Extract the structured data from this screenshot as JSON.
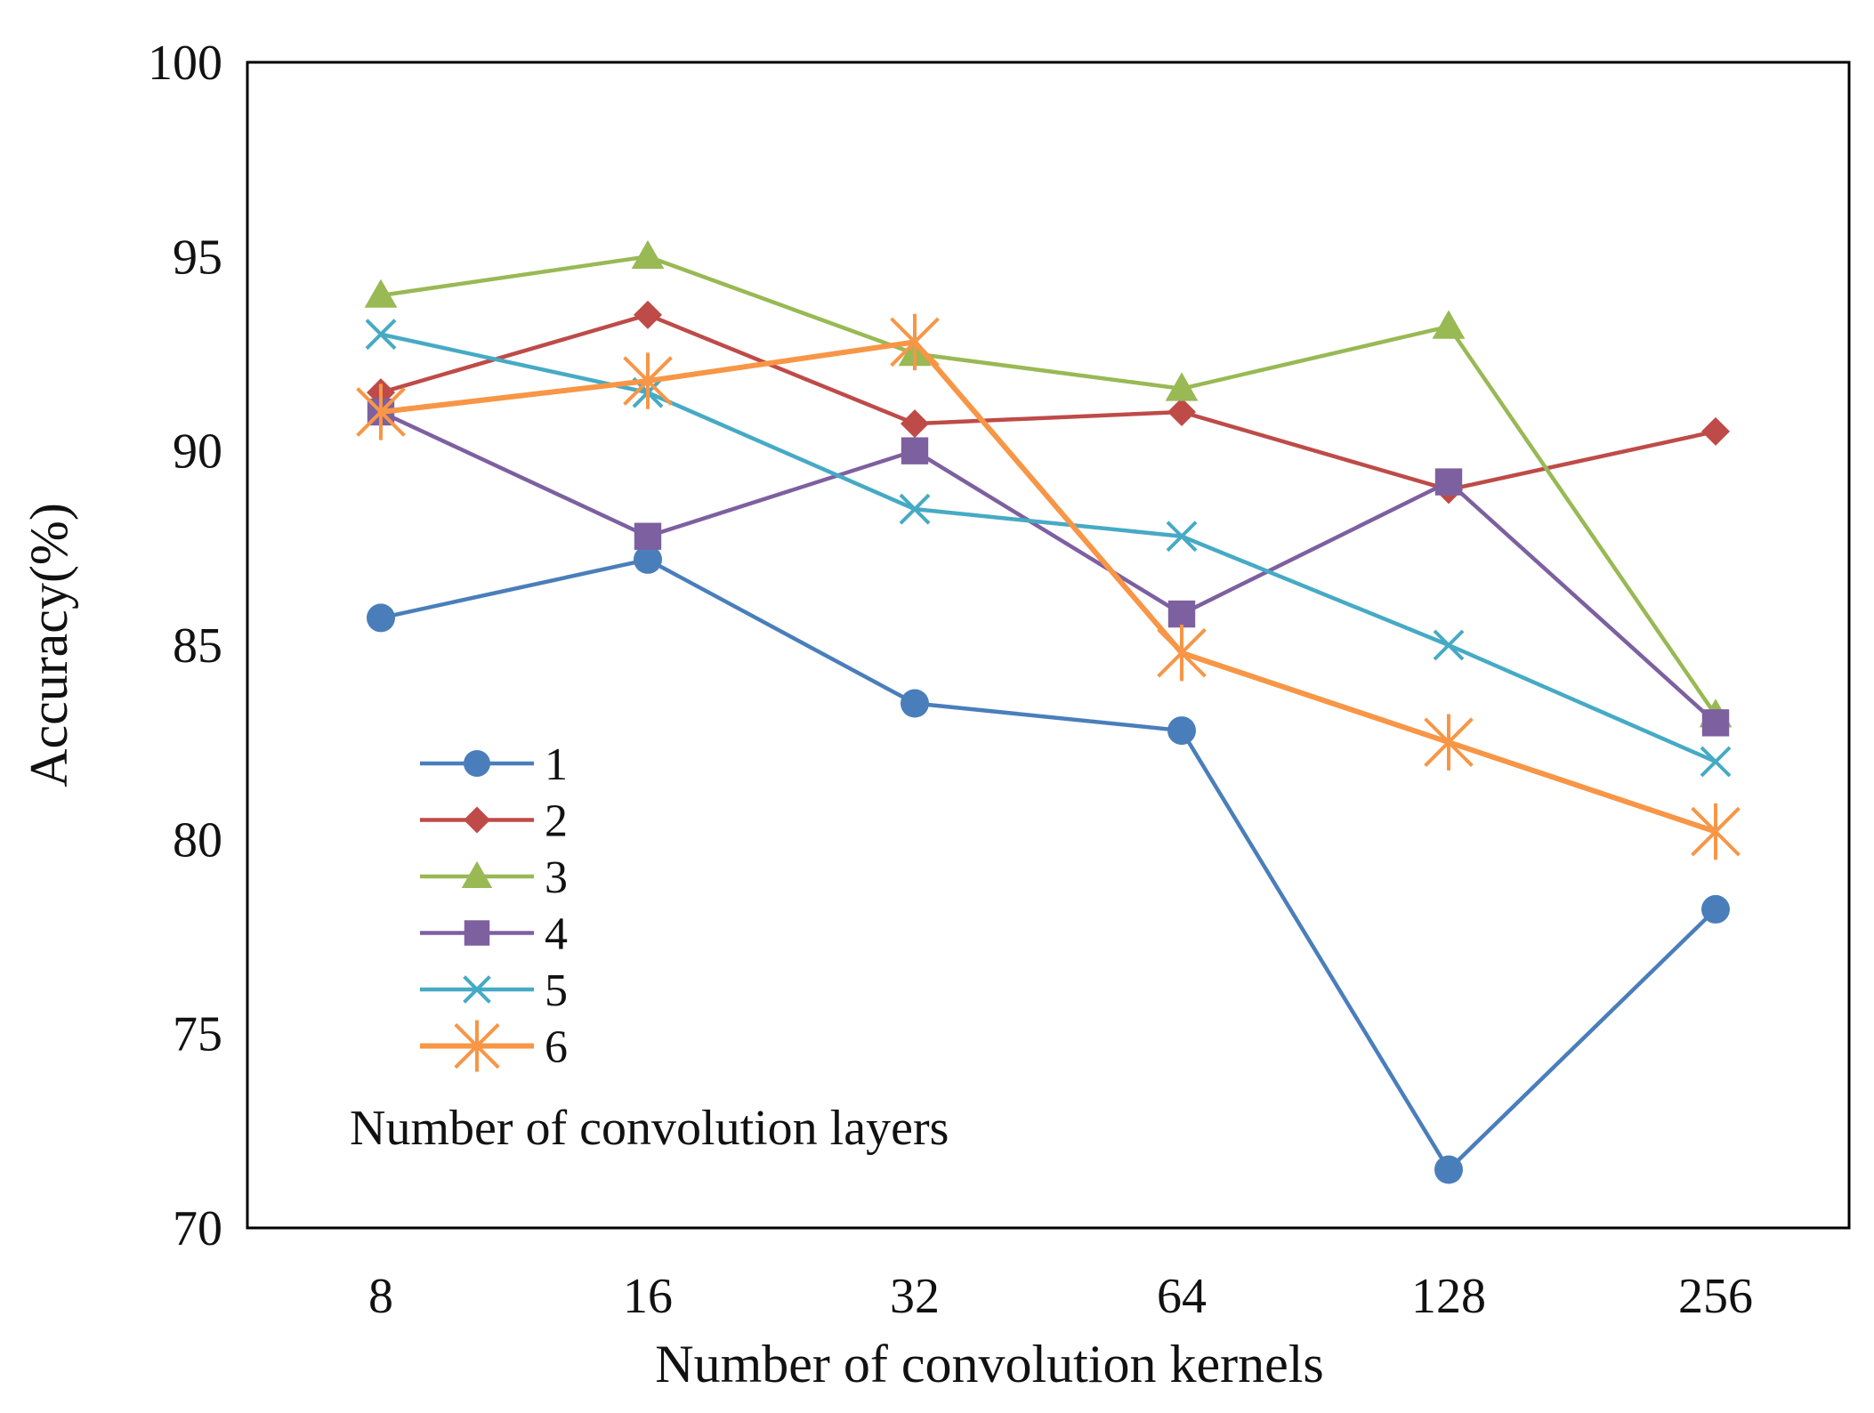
{
  "chart_data": {
    "type": "line",
    "title": "",
    "xlabel": "Number of convolution kernels",
    "ylabel": "Accuracy(%)",
    "categories": [
      "8",
      "16",
      "32",
      "64",
      "128",
      "256"
    ],
    "ylim": [
      70,
      100
    ],
    "yticks": [
      70,
      75,
      80,
      85,
      90,
      95,
      100
    ],
    "legend_title": "Number of convolution layers",
    "legend_position": "bottom-left",
    "series": [
      {
        "name": "1",
        "color": "#4A7EBB",
        "marker": "circle",
        "values": [
          85.7,
          87.2,
          83.5,
          82.8,
          71.5,
          78.2
        ]
      },
      {
        "name": "2",
        "color": "#BE4B48",
        "marker": "diamond",
        "values": [
          91.5,
          93.5,
          90.7,
          91.0,
          89.0,
          90.5
        ]
      },
      {
        "name": "3",
        "color": "#98B954",
        "marker": "triangle",
        "values": [
          94.0,
          95.0,
          92.5,
          91.6,
          93.2,
          83.2
        ]
      },
      {
        "name": "4",
        "color": "#7D60A0",
        "marker": "square",
        "values": [
          91.0,
          87.8,
          90.0,
          85.8,
          89.2,
          83.0
        ]
      },
      {
        "name": "5",
        "color": "#46AAC5",
        "marker": "x",
        "values": [
          93.0,
          91.5,
          88.5,
          87.8,
          85.0,
          82.0
        ]
      },
      {
        "name": "6",
        "color": "#F79646",
        "marker": "asterisk",
        "values": [
          91.0,
          91.8,
          92.8,
          84.8,
          82.5,
          80.2
        ]
      }
    ]
  }
}
